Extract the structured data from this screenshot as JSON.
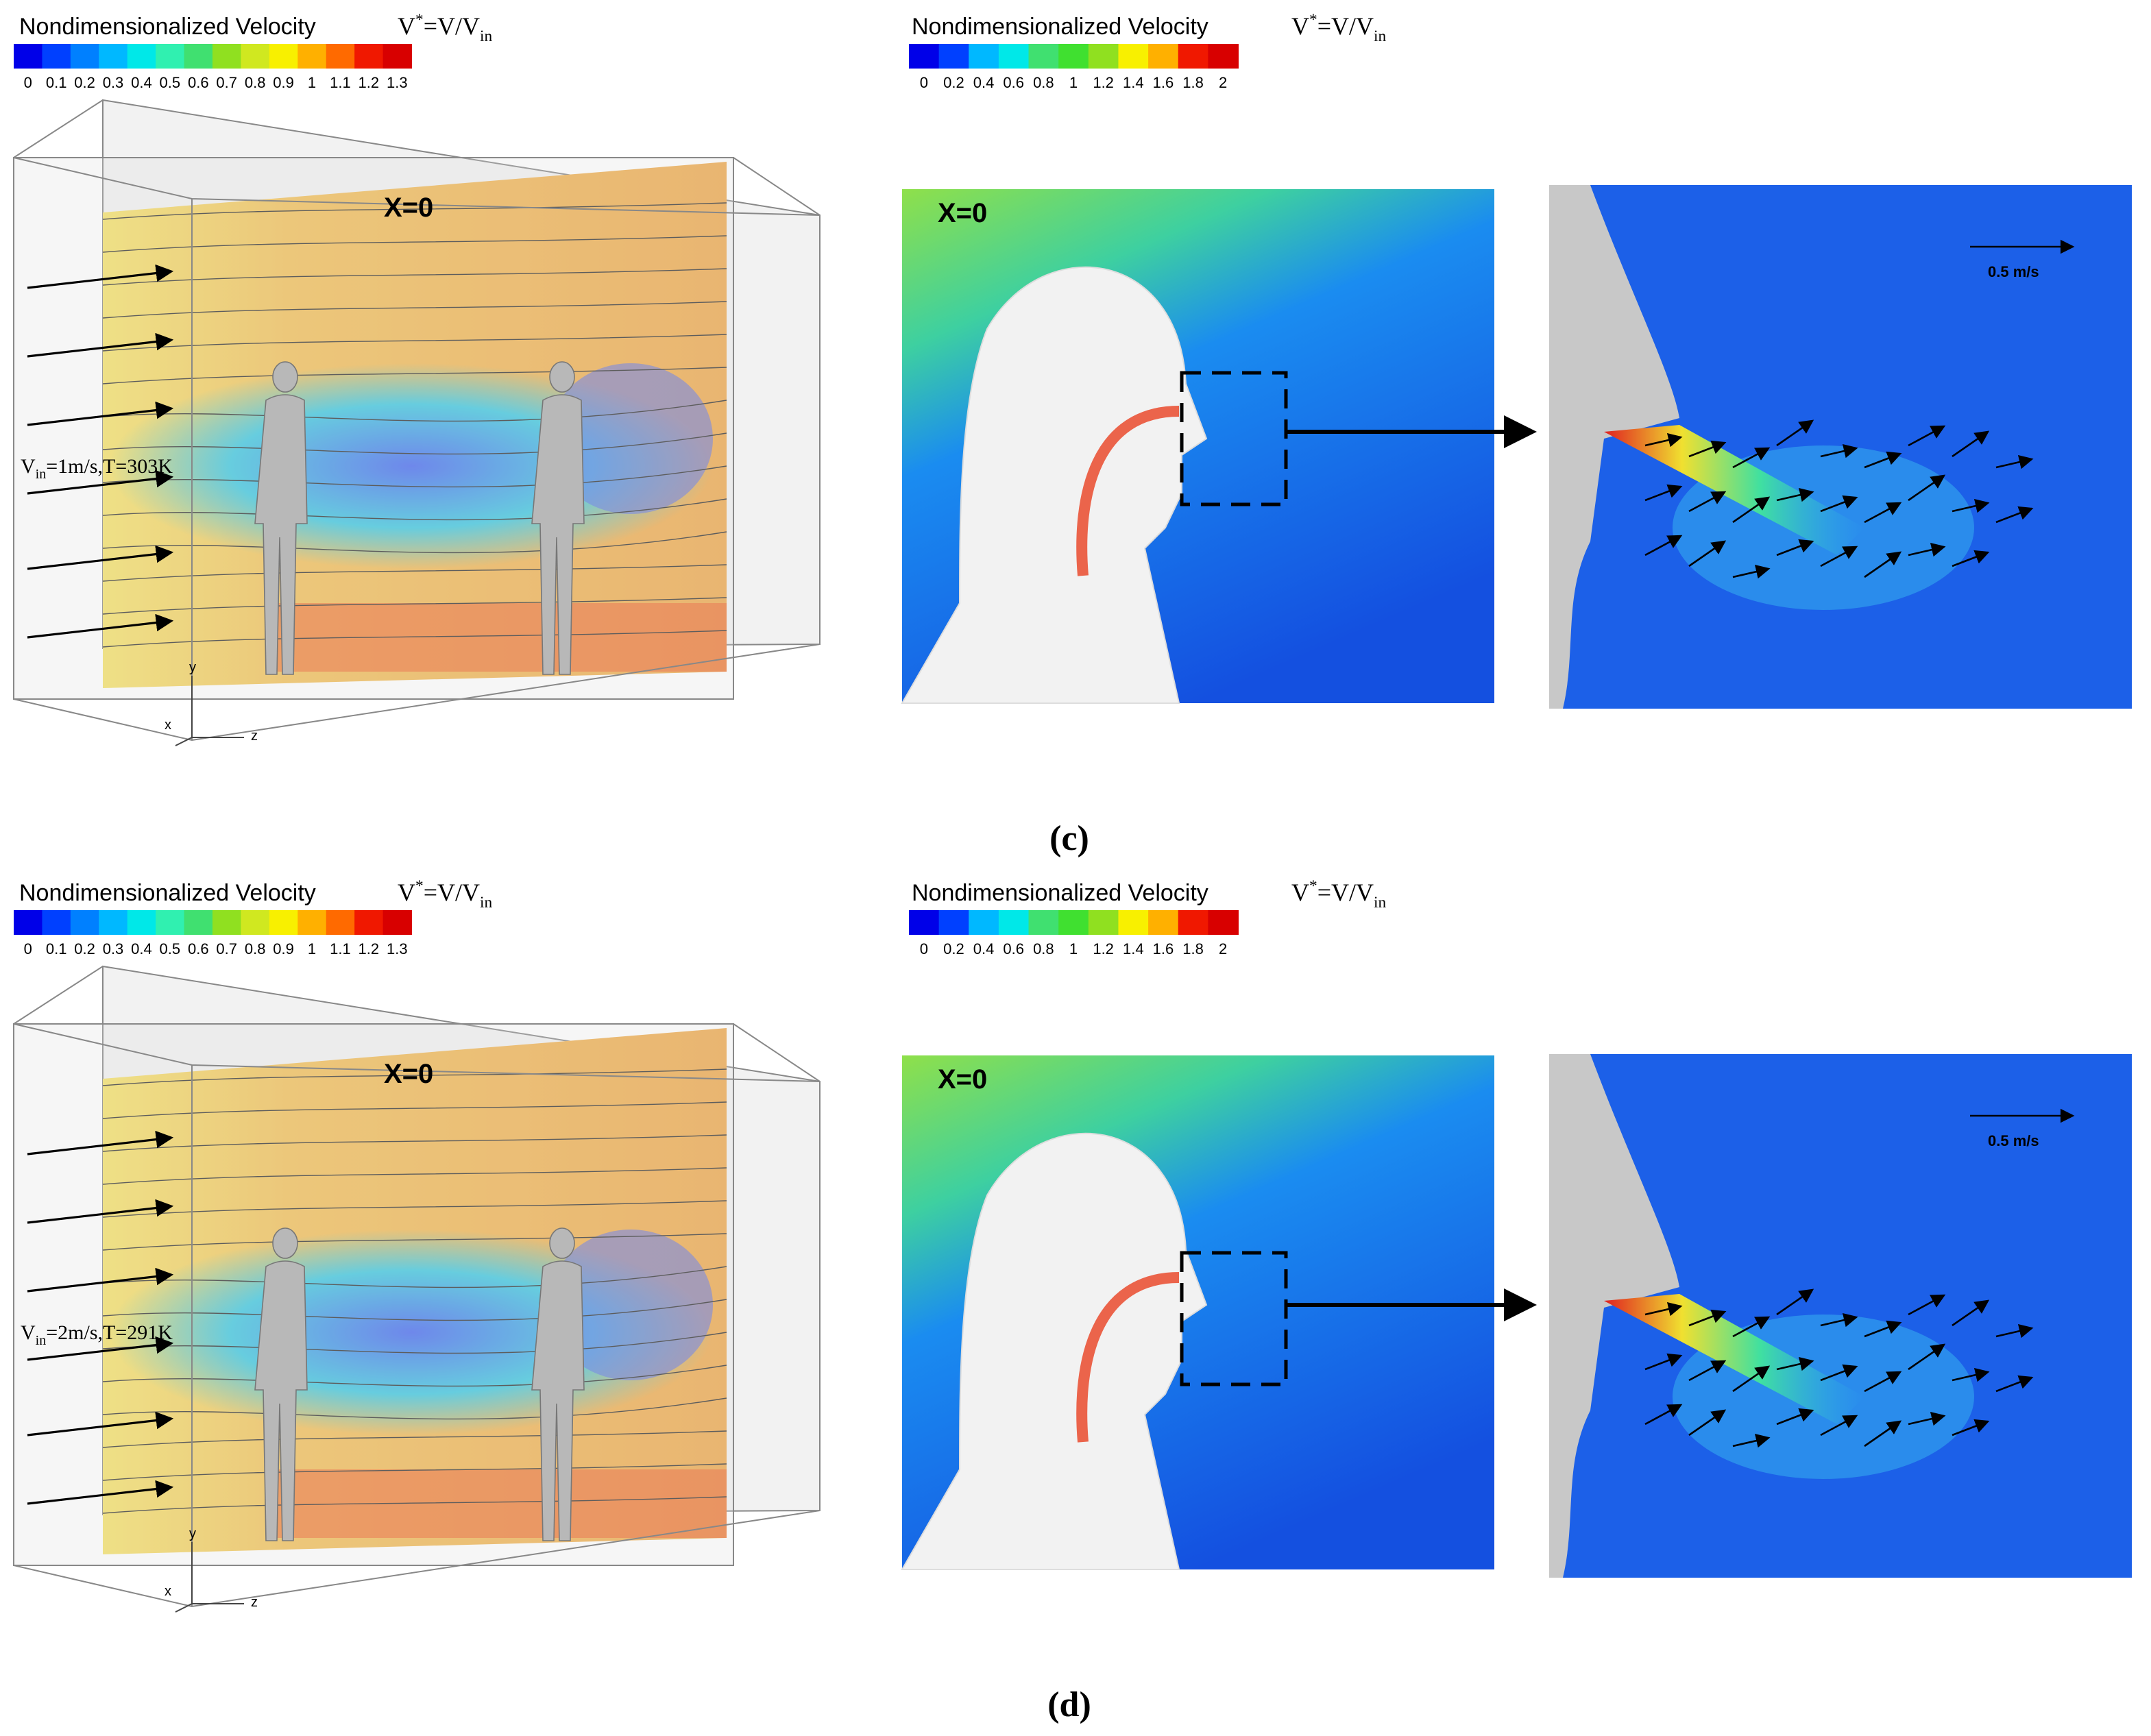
{
  "panels": [
    {
      "label": "(c)",
      "left": {
        "legend": {
          "title": "Nondimensionalized Velocity",
          "formula": {
            "base": "V",
            "sup": "*",
            "rest": "=V/V",
            "sub": "in"
          },
          "ticks": [
            0,
            0.1,
            0.2,
            0.3,
            0.4,
            0.5,
            0.6,
            0.7,
            0.8,
            0.9,
            1,
            1.1,
            1.2,
            1.3
          ]
        },
        "slice_label": "X=0",
        "inlet": {
          "base": "V",
          "sub": "in",
          "rest": "=1m/s,T=303K"
        },
        "axes": [
          "x",
          "y",
          "z"
        ]
      },
      "right": {
        "legend": {
          "title": "Nondimensionalized Velocity",
          "formula": {
            "base": "V",
            "sup": "*",
            "rest": "=V/V",
            "sub": "in"
          },
          "ticks": [
            0,
            0.2,
            0.4,
            0.6,
            0.8,
            1,
            1.2,
            1.4,
            1.6,
            1.8,
            2
          ]
        },
        "slice_label": "X=0",
        "scale": "0.5 m/s"
      }
    },
    {
      "label": "(d)",
      "left": {
        "legend": {
          "title": "Nondimensionalized Velocity",
          "formula": {
            "base": "V",
            "sup": "*",
            "rest": "=V/V",
            "sub": "in"
          },
          "ticks": [
            0,
            0.1,
            0.2,
            0.3,
            0.4,
            0.5,
            0.6,
            0.7,
            0.8,
            0.9,
            1,
            1.1,
            1.2,
            1.3
          ]
        },
        "slice_label": "X=0",
        "inlet": {
          "base": "V",
          "sub": "in",
          "rest": "=2m/s,T=291K"
        },
        "axes": [
          "x",
          "y",
          "z"
        ]
      },
      "right": {
        "legend": {
          "title": "Nondimensionalized Velocity",
          "formula": {
            "base": "V",
            "sup": "*",
            "rest": "=V/V",
            "sub": "in"
          },
          "ticks": [
            0,
            0.2,
            0.4,
            0.6,
            0.8,
            1,
            1.2,
            1.4,
            1.6,
            1.8,
            2
          ]
        },
        "slice_label": "X=0",
        "scale": "0.5 m/s"
      }
    }
  ]
}
